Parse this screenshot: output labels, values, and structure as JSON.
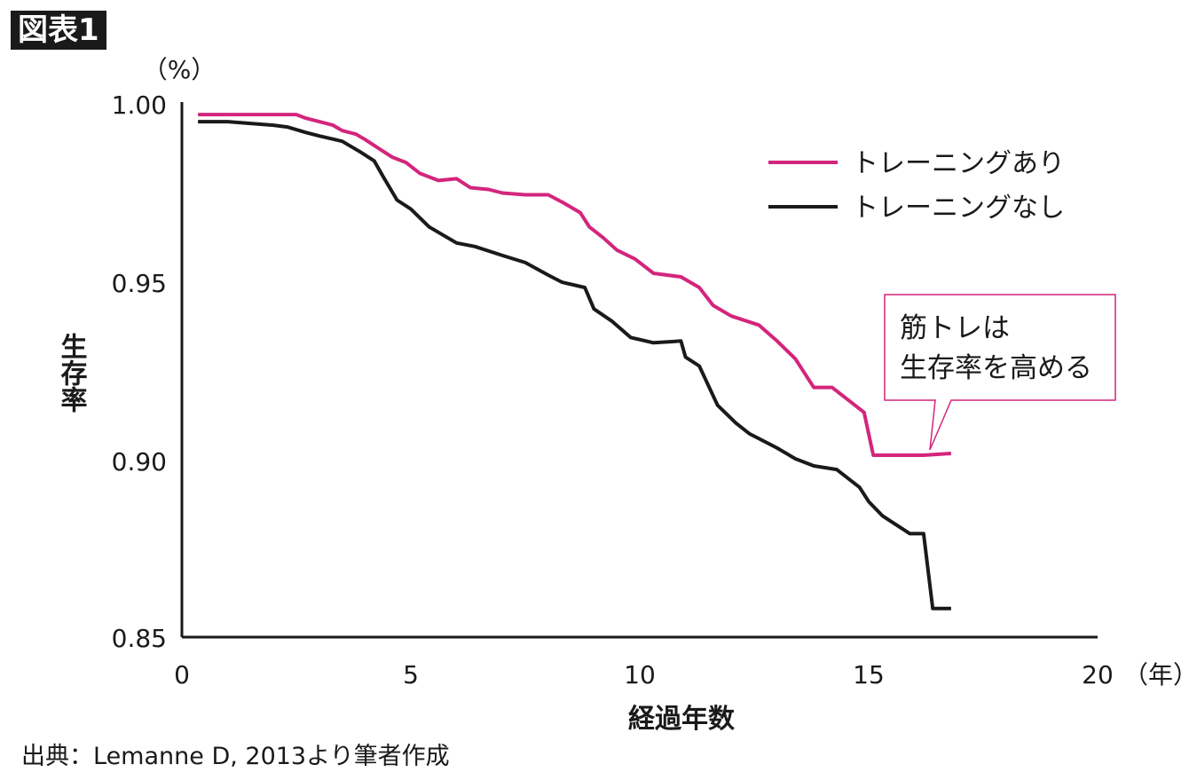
{
  "figure_label": "図表1",
  "source": "出典：Lemanne D, 2013より筆者作成",
  "callout": {
    "line1": "筋トレは",
    "line2": "生存率を高める"
  },
  "colors": {
    "training": "#d4257d",
    "no_training": "#1a1a1a"
  },
  "chart_data": {
    "type": "line",
    "title": "",
    "xlabel": "経過年数",
    "ylabel": "生存率",
    "x_unit": "（年）",
    "y_unit": "（%）",
    "xlim": [
      0,
      20
    ],
    "ylim": [
      0.85,
      1.0
    ],
    "x_ticks": [
      "0",
      "5",
      "10",
      "15",
      "20"
    ],
    "y_ticks": [
      "1.00",
      "0.95",
      "0.90",
      "0.85"
    ],
    "grid": false,
    "legend_position": "top-right",
    "series": [
      {
        "name": "トレーニングあり",
        "color": "#d4257d",
        "x": [
          0.35,
          1.0,
          2.0,
          2.5,
          2.7,
          3.0,
          3.3,
          3.5,
          3.8,
          4.0,
          4.3,
          4.6,
          4.9,
          5.2,
          5.6,
          6.0,
          6.3,
          6.7,
          7.0,
          7.5,
          8.0,
          8.3,
          8.7,
          8.9,
          9.2,
          9.5,
          9.9,
          10.3,
          10.9,
          11.3,
          11.6,
          12.0,
          12.6,
          13.0,
          13.4,
          13.8,
          14.2,
          14.9,
          15.1,
          15.6,
          16.2,
          16.8
        ],
        "y": [
          0.9965,
          0.9965,
          0.9965,
          0.9965,
          0.9955,
          0.9945,
          0.9935,
          0.992,
          0.991,
          0.9895,
          0.987,
          0.9845,
          0.983,
          0.98,
          0.978,
          0.9785,
          0.976,
          0.9755,
          0.9745,
          0.974,
          0.974,
          0.972,
          0.969,
          0.965,
          0.962,
          0.9585,
          0.956,
          0.952,
          0.951,
          0.948,
          0.943,
          0.94,
          0.9375,
          0.933,
          0.928,
          0.92,
          0.92,
          0.913,
          0.901,
          0.901,
          0.901,
          0.9015
        ]
      },
      {
        "name": "トレーニングなし",
        "color": "#1a1a1a",
        "x": [
          0.35,
          1.0,
          2.0,
          2.3,
          2.7,
          3.0,
          3.5,
          3.9,
          4.2,
          4.4,
          4.7,
          5.0,
          5.4,
          5.8,
          6.0,
          6.4,
          7.0,
          7.5,
          8.0,
          8.3,
          8.8,
          9.0,
          9.4,
          9.8,
          10.3,
          10.9,
          11.0,
          11.3,
          11.7,
          12.1,
          12.4,
          13.0,
          13.4,
          13.8,
          14.3,
          14.8,
          15.0,
          15.3,
          15.9,
          16.2,
          16.4,
          16.8
        ],
        "y": [
          0.9945,
          0.9945,
          0.9935,
          0.993,
          0.9915,
          0.9905,
          0.989,
          0.986,
          0.9835,
          0.979,
          0.9725,
          0.97,
          0.965,
          0.962,
          0.9605,
          0.9595,
          0.957,
          0.955,
          0.9515,
          0.9495,
          0.948,
          0.942,
          0.9385,
          0.934,
          0.9325,
          0.933,
          0.9285,
          0.926,
          0.915,
          0.91,
          0.907,
          0.903,
          0.9,
          0.898,
          0.897,
          0.892,
          0.888,
          0.884,
          0.879,
          0.879,
          0.858,
          0.858
        ]
      }
    ]
  }
}
